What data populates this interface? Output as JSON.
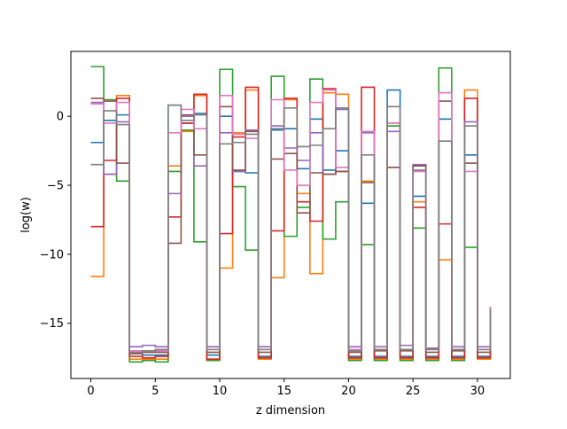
{
  "chart_data": {
    "type": "line",
    "step": "post",
    "xlabel": "z dimension",
    "ylabel": "log(w)",
    "xlim": [
      -1.55,
      32.55
    ],
    "ylim": [
      -19.0,
      4.7
    ],
    "xticks": [
      0,
      5,
      10,
      15,
      20,
      25,
      30
    ],
    "yticks": [
      0,
      -5,
      -10,
      -15
    ],
    "grid": false,
    "legend": "none",
    "x": [
      0,
      1,
      2,
      3,
      4,
      5,
      6,
      7,
      8,
      9,
      10,
      11,
      12,
      13,
      14,
      15,
      16,
      17,
      18,
      19,
      20,
      21,
      22,
      23,
      24,
      25,
      26,
      27,
      28,
      29,
      30,
      31
    ],
    "series": [
      {
        "color": "#1f77b4",
        "values": [
          -1.9,
          -0.3,
          0.1,
          -17.2,
          -17.3,
          -17.3,
          0.8,
          -0.5,
          0.2,
          -17.3,
          0.0,
          -4.0,
          -4.1,
          -17.4,
          -1.0,
          -0.9,
          -3.8,
          -0.2,
          -3.9,
          -2.5,
          -17.4,
          -6.3,
          -17.4,
          1.9,
          -17.4,
          -5.8,
          -17.4,
          -0.2,
          -17.4,
          -2.8,
          -17.4,
          -14.3
        ]
      },
      {
        "color": "#ff7f0e",
        "values": [
          -11.6,
          -4.2,
          1.5,
          -17.6,
          -17.6,
          -17.6,
          -3.6,
          -1.1,
          1.5,
          -17.6,
          -11.0,
          -1.2,
          1.9,
          -17.6,
          -11.7,
          1.2,
          -5.6,
          -11.4,
          1.7,
          1.6,
          -17.6,
          -4.7,
          -17.6,
          -0.5,
          -17.6,
          -6.2,
          -17.6,
          -10.4,
          -17.6,
          1.9,
          -17.6,
          -14.5
        ]
      },
      {
        "color": "#2ca02c",
        "values": [
          3.6,
          1.2,
          -4.7,
          -17.8,
          -17.7,
          -17.8,
          -4.0,
          -1.0,
          -9.1,
          -17.7,
          3.4,
          -5.1,
          -9.7,
          -17.5,
          2.9,
          -8.7,
          -6.6,
          2.7,
          -8.9,
          -6.2,
          -17.7,
          -9.3,
          -17.7,
          -0.7,
          -17.7,
          -8.1,
          -17.7,
          3.5,
          -17.7,
          -9.5,
          -17.5,
          -14.6
        ]
      },
      {
        "color": "#d62728",
        "values": [
          -8.0,
          -3.2,
          1.3,
          -17.4,
          -17.5,
          -17.4,
          -7.3,
          -0.5,
          1.6,
          -17.6,
          -8.5,
          -1.5,
          2.1,
          -17.5,
          -8.3,
          1.3,
          -6.2,
          -7.6,
          2.0,
          -4.0,
          -17.5,
          2.1,
          -17.5,
          -3.7,
          -17.5,
          -6.6,
          -17.5,
          -7.8,
          -17.5,
          1.3,
          -17.5,
          -14.8
        ]
      },
      {
        "color": "#9467bd",
        "values": [
          1.0,
          -4.2,
          -0.4,
          -16.7,
          -16.6,
          -16.7,
          -5.6,
          0.0,
          -3.6,
          -16.7,
          -1.2,
          -4.0,
          -1.0,
          -16.7,
          -0.7,
          -2.3,
          -3.2,
          -1.2,
          -4.2,
          0.5,
          -16.7,
          -1.2,
          -16.7,
          -1.1,
          -16.6,
          -3.5,
          -16.8,
          1.7,
          -16.7,
          -0.4,
          -16.7,
          -13.8
        ]
      },
      {
        "color": "#8c564b",
        "values": [
          1.3,
          1.1,
          -3.4,
          -17.2,
          -17.1,
          -17.1,
          -9.2,
          0.1,
          -2.8,
          -17.1,
          0.7,
          -3.9,
          -1.1,
          -17.1,
          -3.1,
          -2.7,
          -7.0,
          -4.1,
          -4.2,
          -4.0,
          -17.1,
          -4.8,
          -17.0,
          -3.7,
          -17.0,
          -3.6,
          -17.1,
          1.1,
          -17.0,
          -3.4,
          -17.1,
          -14.0
        ]
      },
      {
        "color": "#e377c2",
        "values": [
          0.9,
          -0.5,
          1.0,
          -17.0,
          -17.0,
          -17.0,
          -1.2,
          0.5,
          -0.9,
          -16.9,
          1.5,
          -1.3,
          -1.6,
          -16.9,
          1.2,
          -3.9,
          -5.0,
          1.0,
          1.9,
          -3.7,
          -16.9,
          -1.1,
          -16.9,
          -0.5,
          -16.9,
          -4.0,
          -16.9,
          1.7,
          -16.9,
          -4.0,
          -16.9,
          -13.9
        ]
      },
      {
        "color": "#7f7f7f",
        "values": [
          -3.5,
          0.4,
          -0.6,
          -17.1,
          -17.0,
          -16.9,
          0.8,
          -0.3,
          0.1,
          -16.9,
          -2.0,
          -1.9,
          -1.3,
          -16.9,
          -0.9,
          0.6,
          -2.2,
          -2.1,
          -0.9,
          0.6,
          -17.0,
          -2.8,
          -16.9,
          0.7,
          -16.9,
          -3.9,
          -16.9,
          -1.8,
          -16.9,
          -0.7,
          -16.9,
          -14.0
        ]
      }
    ]
  }
}
